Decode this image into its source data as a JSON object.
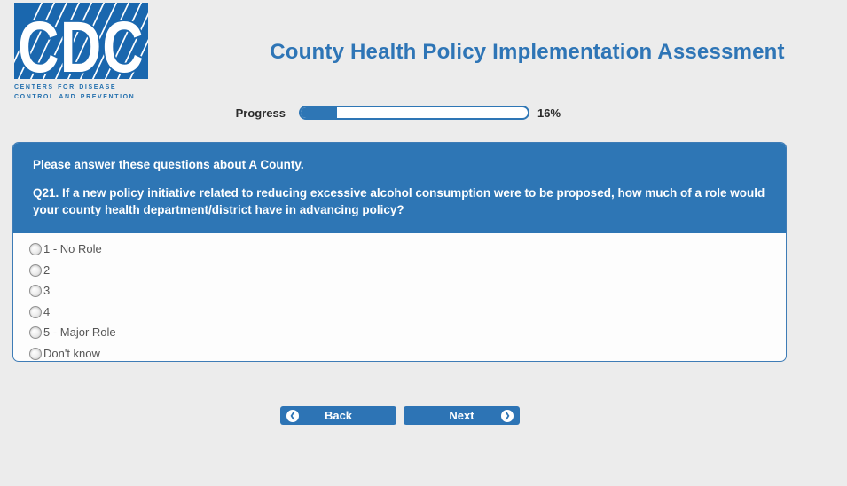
{
  "header": {
    "logo": {
      "acronym": "CDC",
      "caption_line1": "Centers for Disease",
      "caption_line2": "Control and Prevention"
    },
    "title": "County Health Policy Implementation Assessment"
  },
  "progress": {
    "label": "Progress",
    "percent": 16,
    "percent_label": "16%"
  },
  "question_panel": {
    "intro": "Please answer these questions about A County.",
    "question_number": "Q21.",
    "question_text": "If a new policy initiative related to reducing excessive alcohol consumption were to be proposed, how much of a role would your county health department/district have in advancing policy?",
    "options": [
      {
        "label": "1 - No Role",
        "selected": false
      },
      {
        "label": "2",
        "selected": false
      },
      {
        "label": "3",
        "selected": false
      },
      {
        "label": "4",
        "selected": false
      },
      {
        "label": "5 - Major Role",
        "selected": false
      },
      {
        "label": "Don't know",
        "selected": false
      }
    ]
  },
  "buttons": {
    "back": "Back",
    "next": "Next"
  },
  "colors": {
    "page_bg": "#ECECEC",
    "brand_blue": "#2E76B5",
    "logo_blue": "#1A67AE",
    "title_blue": "#2E75B6",
    "option_text": "#565656"
  }
}
